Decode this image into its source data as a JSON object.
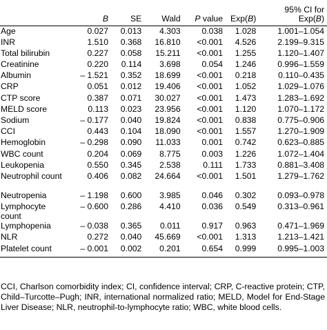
{
  "table": {
    "headers": [
      "",
      "B",
      "SE",
      "Wald",
      "P value",
      "Exp(B)",
      "95% CI for Exp(B)"
    ],
    "rows": [
      {
        "variable": "Age",
        "B": "0.027",
        "SE": "0.013",
        "Wald": "4.303",
        "P": "0.038",
        "ExpB": "1.028",
        "CI": "1.001–1.054"
      },
      {
        "variable": "INR",
        "B": "1.510",
        "SE": "0.368",
        "Wald": "16.810",
        "P": "<0.001",
        "ExpB": "4.526",
        "CI": "2.199–9.315"
      },
      {
        "variable": "Total bilirubin",
        "B": "0.227",
        "SE": "0.058",
        "Wald": "15.211",
        "P": "<0.001",
        "ExpB": "1.255",
        "CI": "1.120–1.407"
      },
      {
        "variable": "Creatinine",
        "B": "0.220",
        "SE": "0.114",
        "Wald": "3.698",
        "P": "0.054",
        "ExpB": "1.246",
        "CI": "0.996–1.559"
      },
      {
        "variable": "Albumin",
        "B": "– 1.521",
        "SE": "0.352",
        "Wald": "18.699",
        "P": "<0.001",
        "ExpB": "0.218",
        "CI": "0.110–0.435"
      },
      {
        "variable": "CRP",
        "B": "0.051",
        "SE": "0.012",
        "Wald": "19.406",
        "P": "<0.001",
        "ExpB": "1.052",
        "CI": "1.029–1.076"
      },
      {
        "variable": "CTP score",
        "B": "0.387",
        "SE": "0.071",
        "Wald": "30.027",
        "P": "<0.001",
        "ExpB": "1.473",
        "CI": "1.283–1.692"
      },
      {
        "variable": "MELD score",
        "B": "0.113",
        "SE": "0.023",
        "Wald": "23.956",
        "P": "<0.001",
        "ExpB": "1.120",
        "CI": "1.070–1.172"
      },
      {
        "variable": "Sodium",
        "B": "– 0.177",
        "SE": "0.040",
        "Wald": "19.824",
        "P": "<0.001",
        "ExpB": "0.838",
        "CI": "0.775–0.906"
      },
      {
        "variable": "CCI",
        "B": "0.443",
        "SE": "0.104",
        "Wald": "18.090",
        "P": "<0.001",
        "ExpB": "1.557",
        "CI": "1.270–1.909"
      },
      {
        "variable": "Hemoglobin",
        "B": "– 0.298",
        "SE": "0.090",
        "Wald": "11.033",
        "P": "0.001",
        "ExpB": "0.742",
        "CI": "0.623–0.885"
      },
      {
        "variable": "WBC count",
        "B": "0.204",
        "SE": "0.069",
        "Wald": "8.775",
        "P": "0.003",
        "ExpB": "1.226",
        "CI": "1.072–1.404"
      },
      {
        "variable": "Leukopenia",
        "B": "0.550",
        "SE": "0.345",
        "Wald": "2.538",
        "P": "0.111",
        "ExpB": "1.733",
        "CI": "0.881–3.408"
      },
      {
        "variable": "Neutrophil count",
        "B": "0.406",
        "SE": "0.082",
        "Wald": "24.664",
        "P": "<0.001",
        "ExpB": "1.501",
        "CI": "1.279–1.762",
        "tall": true
      },
      {
        "variable": "Neutropenia",
        "B": "– 1.198",
        "SE": "0.600",
        "Wald": "3.985",
        "P": "0.046",
        "ExpB": "0.302",
        "CI": "0.093–0.978"
      },
      {
        "variable": "Lymphocyte count",
        "B": "– 0.600",
        "SE": "0.286",
        "Wald": "4.410",
        "P": "0.036",
        "ExpB": "0.549",
        "CI": "0.313–0.961",
        "tall": true
      },
      {
        "variable": "Lymphopenia",
        "B": "– 0.038",
        "SE": "0.365",
        "Wald": "0.011",
        "P": "0.917",
        "ExpB": "0.963",
        "CI": "0.471–1.969"
      },
      {
        "variable": "NLR",
        "B": "0.272",
        "SE": "0.040",
        "Wald": "45.669",
        "P": "<0.001",
        "ExpB": "1.313",
        "CI": "1.213–1.421"
      },
      {
        "variable": "Platelet count",
        "B": "– 0.001",
        "SE": "0.002",
        "Wald": "0.201",
        "P": "0.654",
        "ExpB": "0.999",
        "CI": "0.995–1.003"
      }
    ]
  },
  "footnote": "CCI, Charlson comorbidity index; CI, confidence interval; CRP, C-reactive protein; CTP, Child–Turcotte–Pugh; INR, international normalized ratio; MELD, Model for End-Stage Liver Disease; NLR, neutrophil-to-lymphocyte ratio; WBC, white blood cells."
}
